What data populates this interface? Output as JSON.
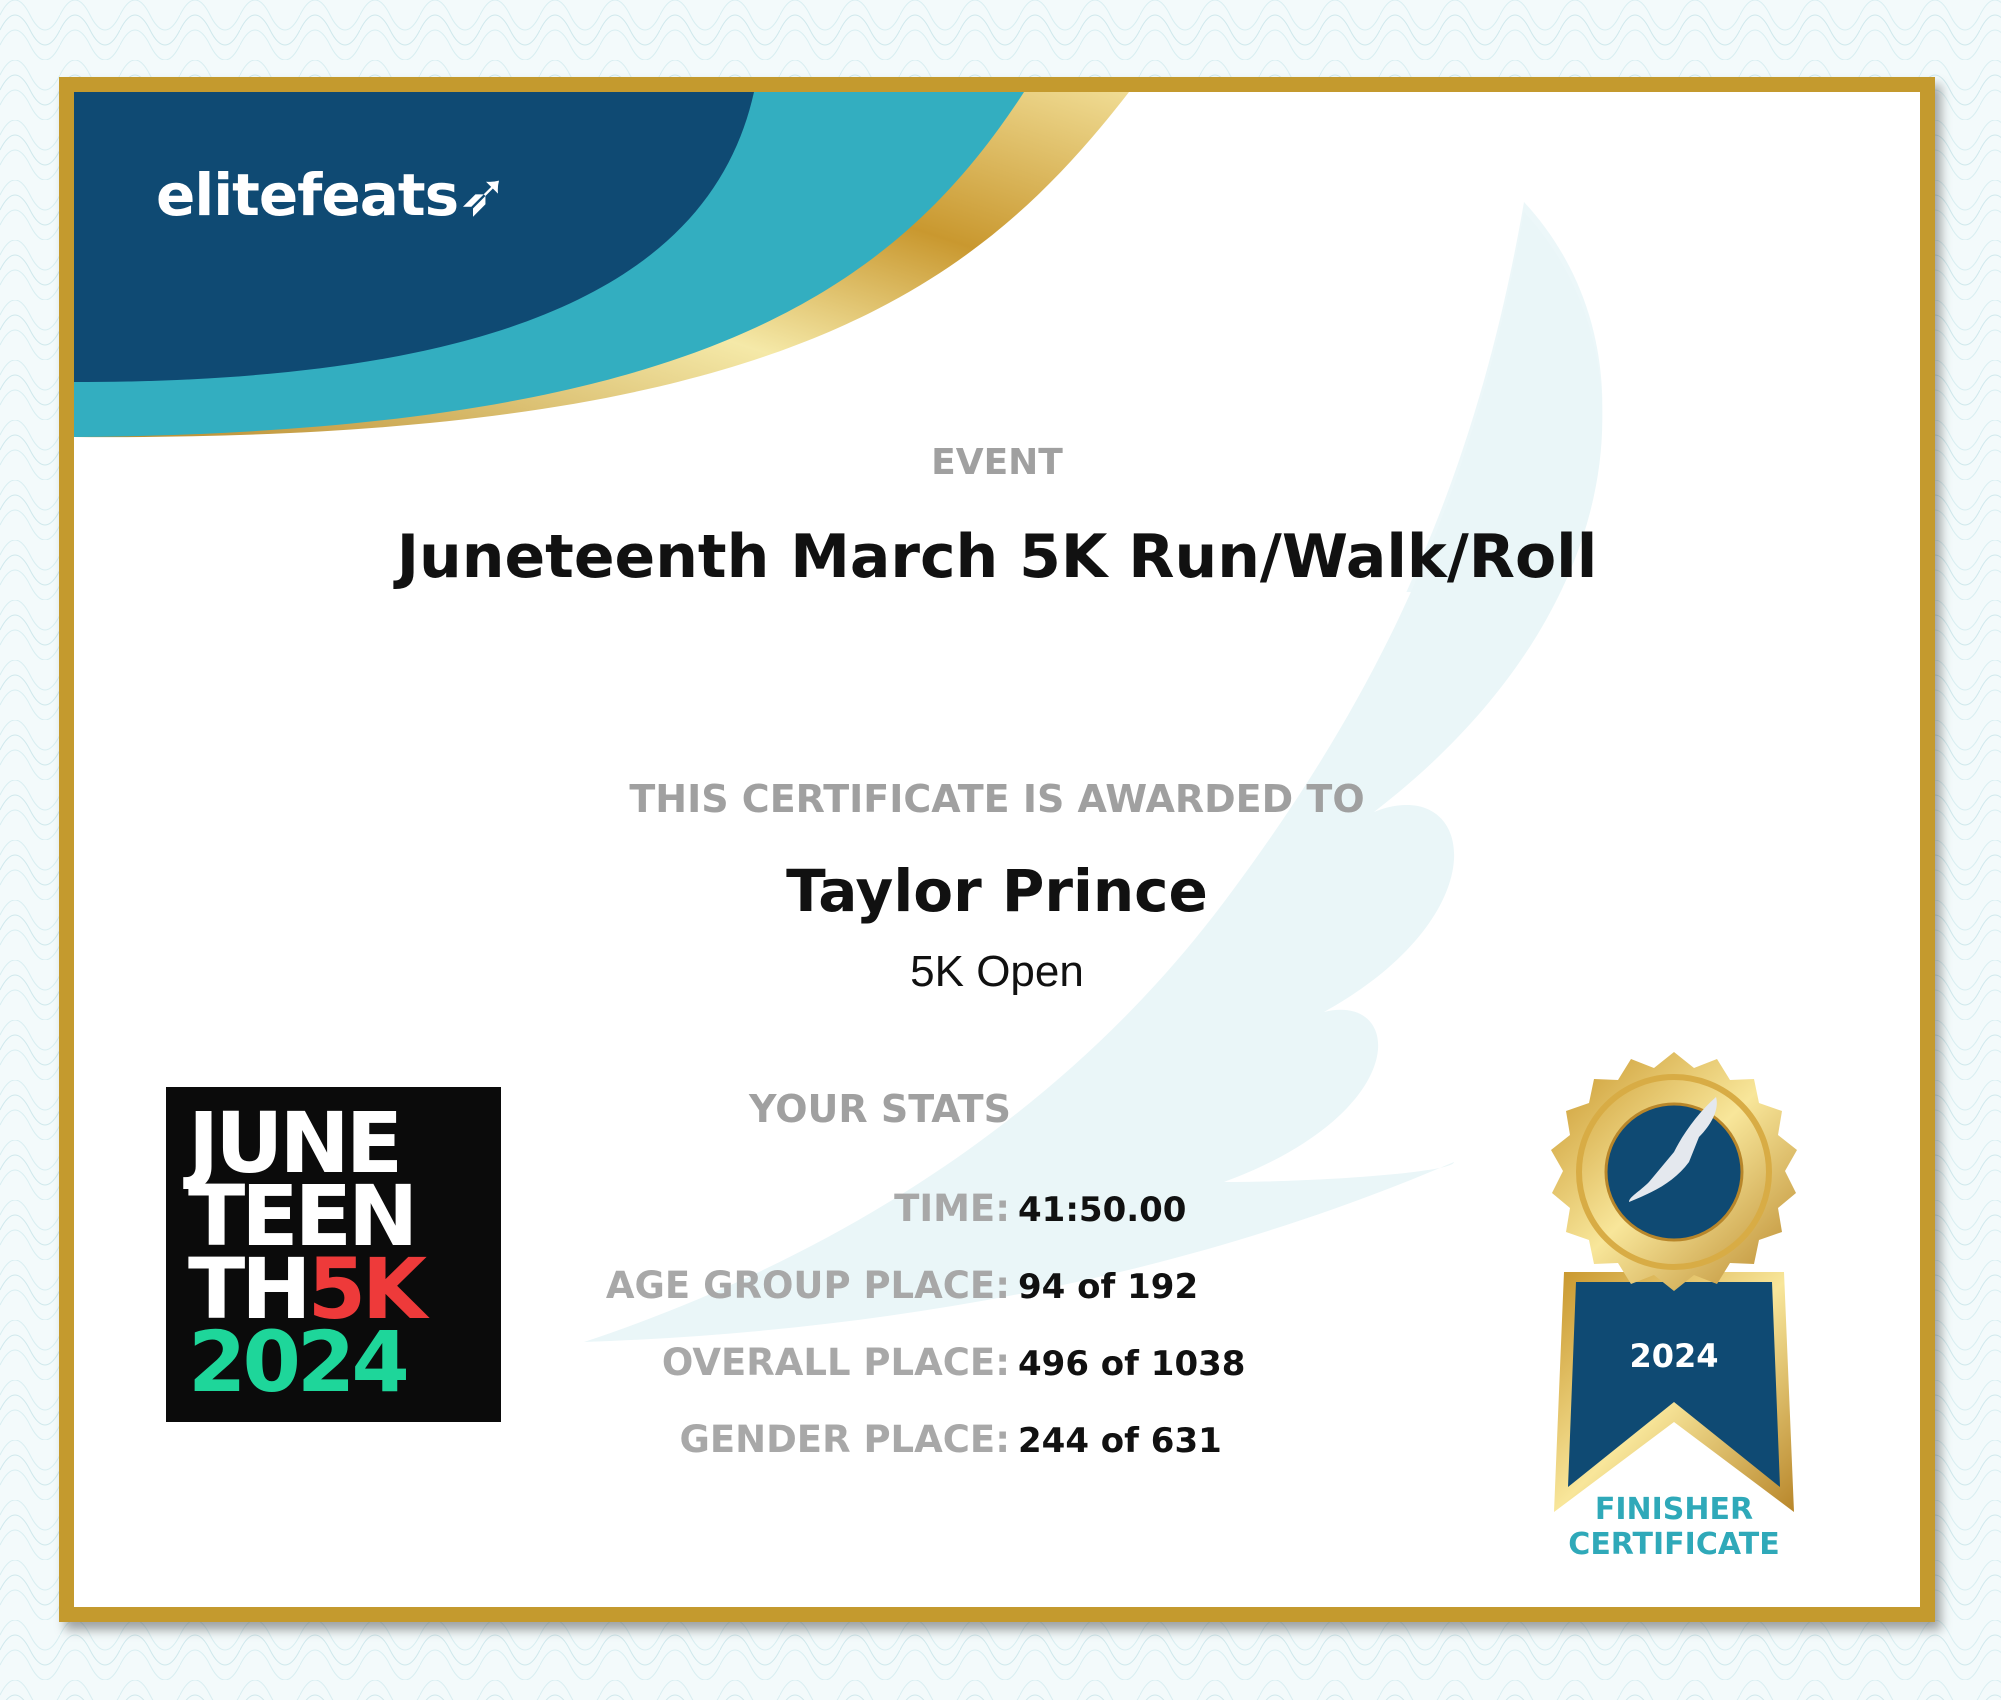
{
  "brand": {
    "name": "elitefeats",
    "colors": {
      "navy": "#0f4a73",
      "teal": "#33aec0",
      "gold": "#c49a2e"
    }
  },
  "event": {
    "label": "EVENT",
    "title": "Juneteenth March 5K Run/Walk/Roll"
  },
  "award": {
    "label": "THIS CERTIFICATE IS AWARDED TO",
    "name": "Taylor Prince",
    "division": "5K Open"
  },
  "stats": {
    "label": "YOUR STATS",
    "rows": [
      {
        "label": "TIME:",
        "value": "41:50.00"
      },
      {
        "label": "AGE GROUP PLACE:",
        "value": "94 of 192"
      },
      {
        "label": "OVERALL PLACE:",
        "value": "496 of 1038"
      },
      {
        "label": "GENDER PLACE:",
        "value": "244 of 631"
      }
    ]
  },
  "event_logo": {
    "lines": [
      "JUNE",
      "TEEN",
      "TH",
      "5K",
      "2024"
    ]
  },
  "medal": {
    "year": "2024",
    "icon": "winged-foot-icon",
    "caption_1": "FINISHER",
    "caption_2": "CERTIFICATE"
  }
}
